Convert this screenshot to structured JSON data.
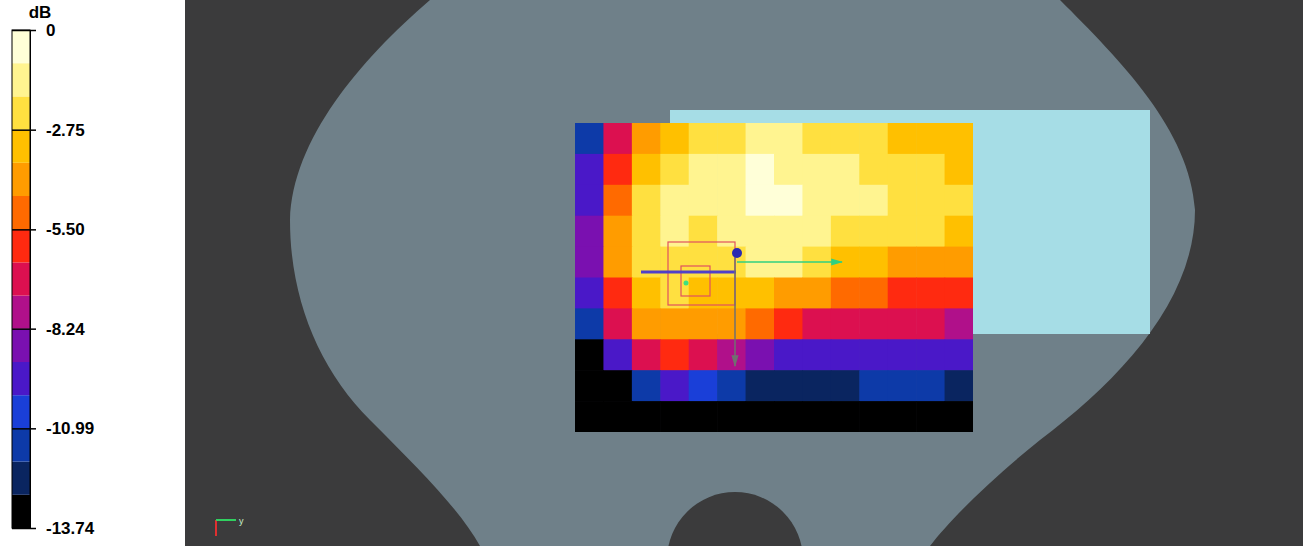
{
  "chart_data": {
    "type": "heatmap",
    "colorbar": {
      "label": "dB",
      "range": [
        -13.74,
        0
      ],
      "ticks": [
        0,
        -2.75,
        {
          "value": -5.5,
          "label": "-5.50"
        },
        -8.24,
        -10.99,
        -13.74
      ]
    },
    "cells": [
      [
        -11,
        -6.5,
        -4,
        -3,
        -2.5,
        -2,
        -1.5,
        -1.8,
        -2.2,
        -2.5,
        -2.5,
        -2.8,
        -3,
        -3
      ],
      [
        -10,
        -5.5,
        -3,
        -2,
        -1.8,
        -1.2,
        -0.5,
        -1,
        -1.5,
        -1.8,
        -2,
        -2.2,
        -2.5,
        -2.8
      ],
      [
        -9.5,
        -5,
        -2.5,
        -1.5,
        -1.5,
        -1,
        -0.3,
        -0.8,
        -1.2,
        -1.5,
        -1.8,
        -2,
        -2.2,
        -2.4
      ],
      [
        -9,
        -4.5,
        -2.3,
        -1.8,
        -2,
        -1.5,
        -1,
        -1.2,
        -1.5,
        -2,
        -2.3,
        -2.5,
        -2.7,
        -2.8
      ],
      [
        -9,
        -4.5,
        -2.2,
        -2,
        -2.3,
        -2,
        -1.8,
        -1.8,
        -2.2,
        -3,
        -3.5,
        -3.8,
        -4,
        -4.2
      ],
      [
        -9.5,
        -5.5,
        -3,
        -2.5,
        -2.8,
        -3,
        -3.3,
        -3.8,
        -4.5,
        -5,
        -5.3,
        -5.5,
        -5.6,
        -5.8
      ],
      [
        -11,
        -7,
        -4.5,
        -3.8,
        -4,
        -4.5,
        -5,
        -5.8,
        -6.5,
        -7,
        -7.2,
        -7.3,
        -7.3,
        -7.5
      ],
      [
        -13,
        -9.5,
        -7,
        -6,
        -6.5,
        -7.5,
        -8.5,
        -9.2,
        -9.6,
        -9.8,
        -9.8,
        -9.8,
        -9.8,
        -10
      ],
      [
        -14,
        -13,
        -11,
        -10,
        -10.5,
        -11.5,
        -12.2,
        -12.5,
        -12.3,
        -12,
        -11.8,
        -11.8,
        -11.8,
        -12
      ],
      [
        -14,
        -14,
        -14,
        -14,
        -14,
        -14,
        -14,
        -14,
        -14,
        -14,
        -14,
        -14,
        -14,
        -14
      ]
    ],
    "annotations": [
      "y"
    ]
  }
}
